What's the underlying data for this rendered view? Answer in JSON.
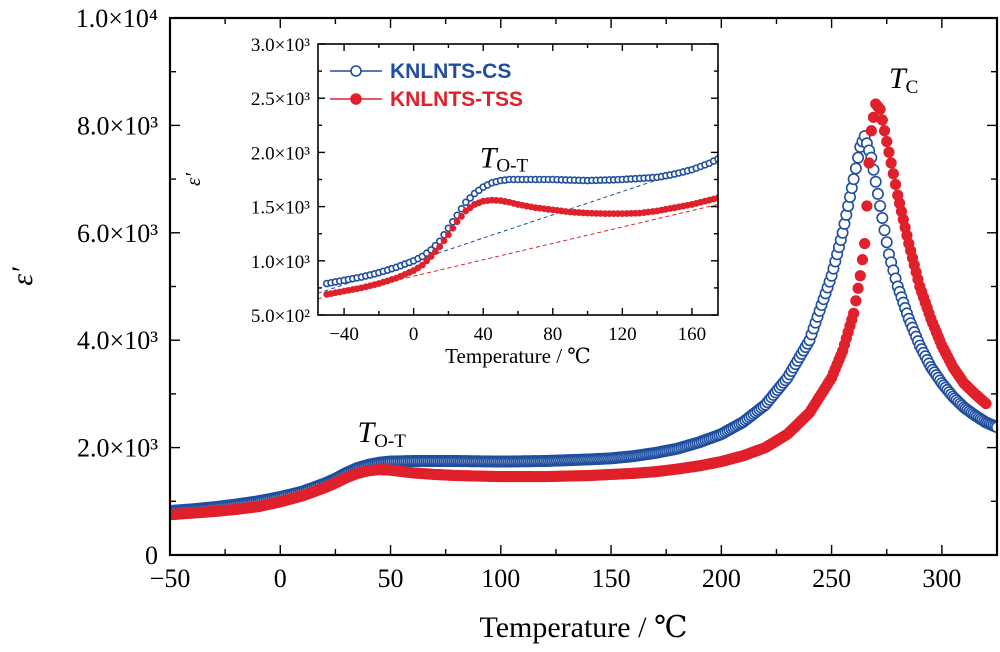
{
  "colors": {
    "cs": "#1f4e9e",
    "tss": "#e0202a",
    "axis": "#000000"
  },
  "chart_data": [
    {
      "type": "scatter",
      "id": "main",
      "xlabel": "Temperature / ℃",
      "ylabel": "ε′",
      "xlim": [
        -50,
        325
      ],
      "ylim": [
        0,
        10000
      ],
      "xticks": [
        -50,
        0,
        50,
        100,
        150,
        200,
        250,
        300
      ],
      "xtick_labels": [
        "−50",
        "0",
        "50",
        "100",
        "150",
        "200",
        "250",
        "300"
      ],
      "yticks": [
        0,
        2000,
        4000,
        6000,
        8000,
        10000
      ],
      "ytick_labels": [
        "0",
        "2.0×10³",
        "4.0×10³",
        "6.0×10³",
        "8.0×10³",
        "1.0×10⁴"
      ],
      "grid": false,
      "annotations": [
        {
          "main": "T",
          "sub": "O-T",
          "x": 35,
          "y": 2100
        },
        {
          "main": "T",
          "sub": "C",
          "x": 276,
          "y": 8700
        }
      ],
      "series": [
        {
          "name": "KNLNTS-CS",
          "marker": "open-circle",
          "x": [
            -50,
            -40,
            -30,
            -20,
            -10,
            0,
            10,
            20,
            25,
            30,
            35,
            40,
            45,
            50,
            60,
            70,
            80,
            100,
            120,
            140,
            150,
            160,
            170,
            180,
            190,
            200,
            210,
            220,
            230,
            240,
            250,
            255,
            260,
            263,
            265,
            268,
            272,
            276,
            280,
            285,
            290,
            295,
            300,
            305,
            310,
            315,
            320,
            325
          ],
          "y": [
            820,
            850,
            890,
            940,
            1000,
            1080,
            1180,
            1330,
            1420,
            1530,
            1620,
            1680,
            1720,
            1740,
            1750,
            1750,
            1750,
            1740,
            1750,
            1780,
            1800,
            1840,
            1900,
            1980,
            2100,
            2250,
            2480,
            2800,
            3300,
            4000,
            5200,
            6000,
            7000,
            7600,
            7800,
            7400,
            6500,
            5600,
            5000,
            4400,
            3900,
            3500,
            3200,
            2950,
            2750,
            2600,
            2470,
            2380
          ]
        },
        {
          "name": "KNLNTS-TSS",
          "marker": "filled-circle",
          "x": [
            -50,
            -40,
            -30,
            -20,
            -10,
            0,
            10,
            20,
            25,
            30,
            35,
            40,
            45,
            50,
            60,
            70,
            80,
            100,
            120,
            140,
            150,
            160,
            170,
            180,
            190,
            200,
            210,
            220,
            230,
            240,
            250,
            255,
            260,
            263,
            265,
            266,
            267,
            268,
            270,
            272,
            276,
            280,
            285,
            290,
            295,
            300,
            305,
            310,
            315,
            320
          ],
          "y": [
            750,
            780,
            810,
            850,
            900,
            990,
            1100,
            1250,
            1340,
            1440,
            1520,
            1570,
            1590,
            1580,
            1530,
            1500,
            1480,
            1460,
            1460,
            1480,
            1500,
            1520,
            1550,
            1600,
            1660,
            1740,
            1850,
            2000,
            2250,
            2650,
            3300,
            3800,
            4500,
            5200,
            5800,
            6500,
            7300,
            7900,
            8400,
            8300,
            7500,
            6700,
            5800,
            5000,
            4400,
            3900,
            3500,
            3200,
            3000,
            2820
          ]
        }
      ]
    },
    {
      "type": "scatter",
      "id": "inset",
      "xlabel": "Temperature / ℃",
      "ylabel": "ε′",
      "xlim": [
        -55,
        175
      ],
      "ylim": [
        500,
        3000
      ],
      "xticks": [
        -40,
        0,
        40,
        80,
        120,
        160
      ],
      "xtick_labels": [
        "−40",
        "0",
        "40",
        "80",
        "120",
        "160"
      ],
      "yticks": [
        500,
        1000,
        1500,
        2000,
        2500,
        3000
      ],
      "ytick_labels": [
        "5.0×10²",
        "1.0×10³",
        "1.5×10³",
        "2.0×10³",
        "2.5×10³",
        "3.0×10³"
      ],
      "grid": false,
      "legend": "top-left",
      "annotations": [
        {
          "main": "T",
          "sub": "O-T",
          "x": 38,
          "y": 1860
        }
      ],
      "guides": [
        {
          "series": "KNLNTS-CS",
          "x": [
            -55,
            150
          ],
          "y": [
            700,
            1800
          ]
        },
        {
          "series": "KNLNTS-TSS",
          "x": [
            -55,
            175
          ],
          "y": [
            650,
            1520
          ]
        }
      ],
      "series": [
        {
          "name": "KNLNTS-CS",
          "marker": "open-circle",
          "x": [
            -50,
            -40,
            -30,
            -20,
            -10,
            0,
            5,
            10,
            15,
            20,
            25,
            30,
            35,
            40,
            45,
            50,
            55,
            60,
            70,
            80,
            90,
            100,
            110,
            120,
            130,
            140,
            150,
            160,
            170,
            175
          ],
          "y": [
            790,
            820,
            850,
            890,
            940,
            1000,
            1040,
            1100,
            1180,
            1300,
            1420,
            1540,
            1620,
            1680,
            1720,
            1740,
            1750,
            1750,
            1750,
            1750,
            1745,
            1740,
            1745,
            1750,
            1760,
            1770,
            1800,
            1840,
            1900,
            1940
          ]
        },
        {
          "name": "KNLNTS-TSS",
          "marker": "filled-circle",
          "x": [
            -50,
            -40,
            -30,
            -20,
            -10,
            0,
            5,
            10,
            15,
            20,
            25,
            30,
            35,
            40,
            45,
            50,
            55,
            60,
            70,
            80,
            90,
            100,
            110,
            120,
            130,
            140,
            150,
            160,
            170,
            175
          ],
          "y": [
            690,
            720,
            750,
            790,
            840,
            910,
            960,
            1040,
            1130,
            1240,
            1360,
            1460,
            1520,
            1550,
            1560,
            1555,
            1540,
            1520,
            1490,
            1470,
            1450,
            1440,
            1435,
            1435,
            1440,
            1460,
            1490,
            1520,
            1560,
            1580
          ]
        }
      ]
    }
  ]
}
